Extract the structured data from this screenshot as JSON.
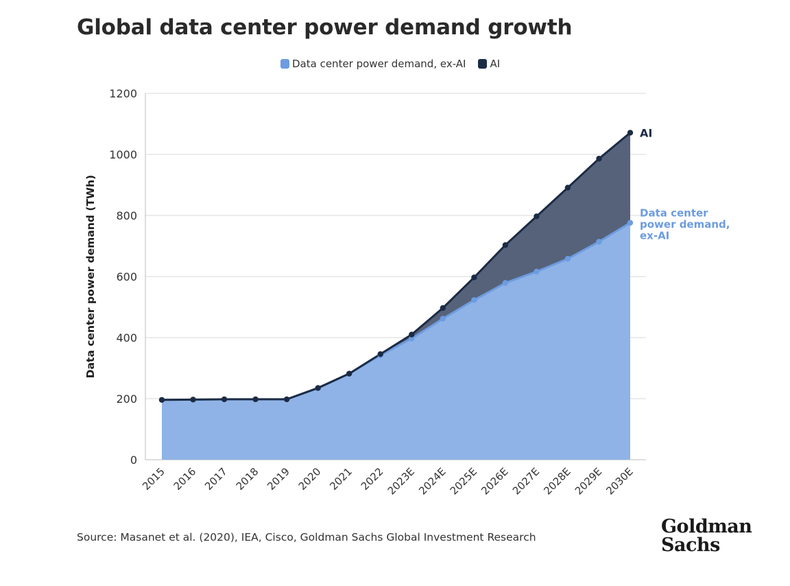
{
  "title": "Global data center power demand growth",
  "legend": [
    {
      "label": "Data center power demand, ex-AI",
      "color": "#6d9ce0"
    },
    {
      "label": "AI",
      "color": "#1c2b45"
    }
  ],
  "source": "Source: Masanet et al. (2020), IEA, Cisco, Goldman Sachs Global Investment Research",
  "logo": {
    "line1": "Goldman",
    "line2": "Sachs"
  },
  "colors": {
    "ex_ai_fill": "#8fb3e6",
    "ex_ai_line": "#6d9ce0",
    "ai_fill": "#56627a",
    "ai_line": "#1c2b45",
    "grid": "#d9d9d9"
  },
  "chart_data": {
    "type": "area",
    "ylabel": "Data center power demand (TWh)",
    "xlabel": "",
    "categories": [
      "2015",
      "2016",
      "2017",
      "2018",
      "2019",
      "2020",
      "2021",
      "2022",
      "2023E",
      "2024E",
      "2025E",
      "2026E",
      "2027E",
      "2028E",
      "2029E",
      "2030E"
    ],
    "yticks": [
      0,
      200,
      400,
      600,
      800,
      1000,
      1200
    ],
    "ylim": [
      0,
      1200
    ],
    "grid": true,
    "series": [
      {
        "name": "Data center power demand, ex-AI",
        "end_label": "Data center power demand, ex-AI",
        "values": [
          196,
          197,
          198,
          198,
          198,
          235,
          282,
          342,
          397,
          462,
          523,
          579,
          616,
          658,
          714,
          776
        ]
      },
      {
        "name": "AI",
        "end_label": "AI",
        "stacked_total": true,
        "values": [
          196,
          197,
          198,
          198,
          198,
          235,
          282,
          346,
          410,
          497,
          597,
          703,
          797,
          891,
          986,
          1071
        ]
      }
    ],
    "end_label_lines": {
      "ai": [
        "AI"
      ],
      "ex_ai": [
        "Data center",
        "power demand,",
        "ex-AI"
      ]
    }
  }
}
